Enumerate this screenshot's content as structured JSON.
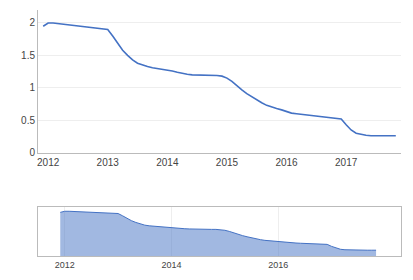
{
  "chart_data": [
    {
      "type": "line",
      "color": "#4472c4",
      "grid": true,
      "xlim": [
        2011.83,
        2017.92
      ],
      "xticks": [
        2012,
        2013,
        2014,
        2015,
        2016,
        2017
      ],
      "ylim": [
        0,
        2.2
      ],
      "yticks": [
        0,
        0.5,
        1,
        1.5,
        2
      ],
      "x": [
        2011.917,
        2012.0,
        2012.083,
        2012.167,
        2012.25,
        2012.333,
        2012.417,
        2012.5,
        2012.583,
        2012.667,
        2012.75,
        2012.833,
        2012.917,
        2013.0,
        2013.083,
        2013.167,
        2013.25,
        2013.333,
        2013.417,
        2013.5,
        2013.583,
        2013.667,
        2013.75,
        2013.833,
        2013.917,
        2014.0,
        2014.083,
        2014.167,
        2014.25,
        2014.333,
        2014.417,
        2014.5,
        2014.583,
        2014.667,
        2014.75,
        2014.833,
        2014.917,
        2015.0,
        2015.083,
        2015.167,
        2015.25,
        2015.333,
        2015.417,
        2015.5,
        2015.583,
        2015.667,
        2015.75,
        2015.833,
        2015.917,
        2016.0,
        2016.083,
        2016.167,
        2016.25,
        2016.333,
        2016.417,
        2016.5,
        2016.583,
        2016.667,
        2016.75,
        2016.833,
        2016.917,
        2017.0,
        2017.083,
        2017.167,
        2017.25,
        2017.333,
        2017.417,
        2017.5,
        2017.583,
        2017.667,
        2017.75,
        2017.833
      ],
      "values": [
        1.95,
        2.0,
        2.0,
        1.99,
        1.98,
        1.97,
        1.96,
        1.95,
        1.94,
        1.94,
        1.93,
        1.92,
        1.91,
        1.9,
        1.8,
        1.68,
        1.58,
        1.5,
        1.43,
        1.38,
        1.35,
        1.33,
        1.31,
        1.3,
        1.29,
        1.28,
        1.26,
        1.24,
        1.22,
        1.21,
        1.2,
        1.2,
        1.2,
        1.2,
        1.19,
        1.19,
        1.18,
        1.15,
        1.1,
        1.03,
        0.97,
        0.91,
        0.86,
        0.81,
        0.77,
        0.73,
        0.7,
        0.68,
        0.66,
        0.63,
        0.61,
        0.6,
        0.59,
        0.58,
        0.57,
        0.56,
        0.56,
        0.55,
        0.54,
        0.53,
        0.52,
        0.43,
        0.35,
        0.3,
        0.28,
        0.27,
        0.26,
        0.26,
        0.26,
        0.26,
        0.26,
        0.26
      ]
    },
    {
      "type": "area",
      "color": "#4472c4",
      "grid": true,
      "tick_labels": "x",
      "xlim": [
        2011.5,
        2018.3
      ],
      "xticks": [
        2012,
        2014,
        2016
      ],
      "ylim": [
        0,
        2.2
      ],
      "x": [
        2011.917,
        2012.0,
        2012.083,
        2012.167,
        2012.25,
        2012.333,
        2012.417,
        2012.5,
        2012.583,
        2012.667,
        2012.75,
        2012.833,
        2012.917,
        2013.0,
        2013.083,
        2013.167,
        2013.25,
        2013.333,
        2013.417,
        2013.5,
        2013.583,
        2013.667,
        2013.75,
        2013.833,
        2013.917,
        2014.0,
        2014.083,
        2014.167,
        2014.25,
        2014.333,
        2014.417,
        2014.5,
        2014.583,
        2014.667,
        2014.75,
        2014.833,
        2014.917,
        2015.0,
        2015.083,
        2015.167,
        2015.25,
        2015.333,
        2015.417,
        2015.5,
        2015.583,
        2015.667,
        2015.75,
        2015.833,
        2015.917,
        2016.0,
        2016.083,
        2016.167,
        2016.25,
        2016.333,
        2016.417,
        2016.5,
        2016.583,
        2016.667,
        2016.75,
        2016.833,
        2016.917,
        2017.0,
        2017.083,
        2017.167,
        2017.25,
        2017.333,
        2017.417,
        2017.5,
        2017.583,
        2017.667,
        2017.75,
        2017.833
      ],
      "values": [
        1.95,
        2.0,
        2.0,
        1.99,
        1.98,
        1.97,
        1.96,
        1.95,
        1.94,
        1.94,
        1.93,
        1.92,
        1.91,
        1.9,
        1.8,
        1.68,
        1.58,
        1.5,
        1.43,
        1.38,
        1.35,
        1.33,
        1.31,
        1.3,
        1.29,
        1.28,
        1.26,
        1.24,
        1.22,
        1.21,
        1.2,
        1.2,
        1.2,
        1.2,
        1.19,
        1.19,
        1.18,
        1.15,
        1.1,
        1.03,
        0.97,
        0.91,
        0.86,
        0.81,
        0.77,
        0.73,
        0.7,
        0.68,
        0.66,
        0.63,
        0.61,
        0.6,
        0.59,
        0.58,
        0.57,
        0.56,
        0.56,
        0.55,
        0.54,
        0.53,
        0.52,
        0.43,
        0.35,
        0.3,
        0.28,
        0.27,
        0.26,
        0.26,
        0.26,
        0.26,
        0.26,
        0.26
      ]
    }
  ]
}
